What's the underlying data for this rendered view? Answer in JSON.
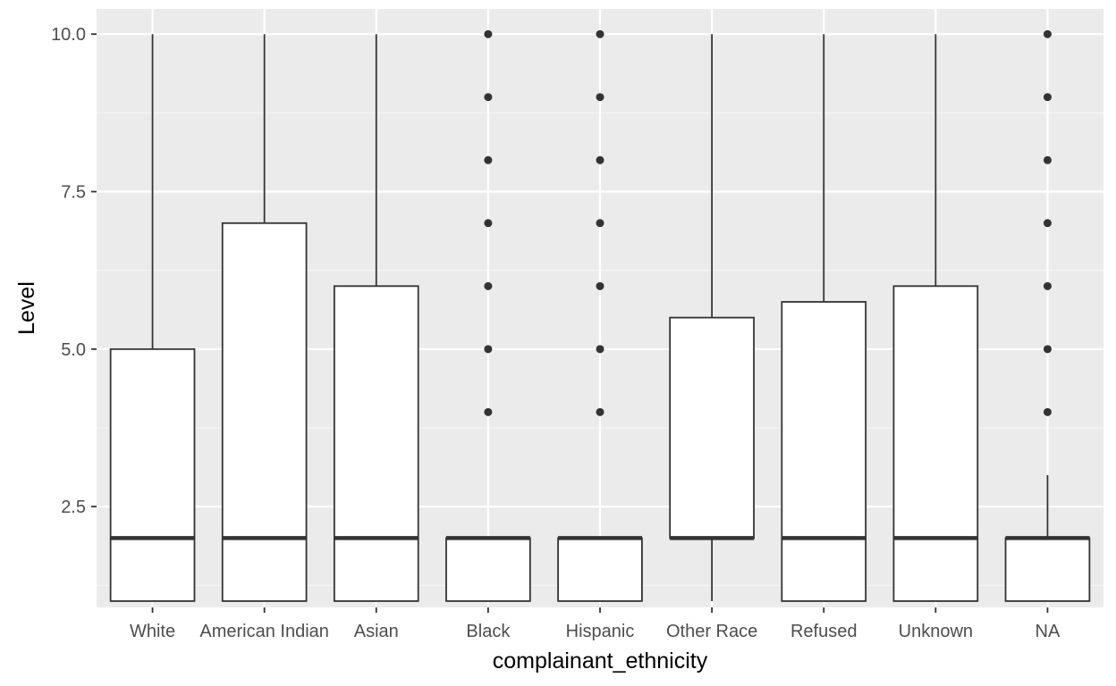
{
  "chart_data": {
    "type": "boxplot",
    "title": "",
    "xlabel": "complainant_ethnicity",
    "ylabel": "Level",
    "ylim": [
      0.9,
      10.4
    ],
    "grid": true,
    "y_ticks": [
      2.5,
      5.0,
      7.5,
      10.0
    ],
    "y_tick_labels": [
      "2.5",
      "5.0",
      "7.5",
      "10.0"
    ],
    "categories": [
      "White",
      "American Indian",
      "Asian",
      "Black",
      "Hispanic",
      "Other Race",
      "Refused",
      "Unknown",
      "NA"
    ],
    "boxes": [
      {
        "category": "White",
        "min": 1,
        "q1": 1,
        "median": 2,
        "q3": 5,
        "max": 10,
        "outliers": []
      },
      {
        "category": "American Indian",
        "min": 1,
        "q1": 1,
        "median": 2,
        "q3": 7,
        "max": 10,
        "outliers": []
      },
      {
        "category": "Asian",
        "min": 1,
        "q1": 1,
        "median": 2,
        "q3": 6,
        "max": 10,
        "outliers": []
      },
      {
        "category": "Black",
        "min": 1,
        "q1": 1,
        "median": 2,
        "q3": 2,
        "max": 2,
        "outliers": [
          4,
          5,
          6,
          7,
          8,
          9,
          10
        ]
      },
      {
        "category": "Hispanic",
        "min": 1,
        "q1": 1,
        "median": 2,
        "q3": 2,
        "max": 2,
        "outliers": [
          4,
          5,
          6,
          7,
          8,
          9,
          10
        ]
      },
      {
        "category": "Other Race",
        "min": 1,
        "q1": 2,
        "median": 2,
        "q3": 5.5,
        "max": 10,
        "outliers": []
      },
      {
        "category": "Refused",
        "min": 1,
        "q1": 1,
        "median": 2,
        "q3": 5.75,
        "max": 10,
        "outliers": []
      },
      {
        "category": "Unknown",
        "min": 1,
        "q1": 1,
        "median": 2,
        "q3": 6,
        "max": 10,
        "outliers": []
      },
      {
        "category": "NA",
        "min": 1,
        "q1": 1,
        "median": 2,
        "q3": 2,
        "max": 3,
        "outliers": [
          4,
          5,
          6,
          7,
          8,
          9,
          10
        ]
      }
    ],
    "colors": {
      "panel_background": "#EBEBEB",
      "grid_major": "#FFFFFF",
      "grid_minor": "#F5F5F5",
      "box_fill": "#FFFFFF",
      "box_stroke": "#333333",
      "tick_text": "#4D4D4D",
      "axis_title": "#000000"
    }
  }
}
